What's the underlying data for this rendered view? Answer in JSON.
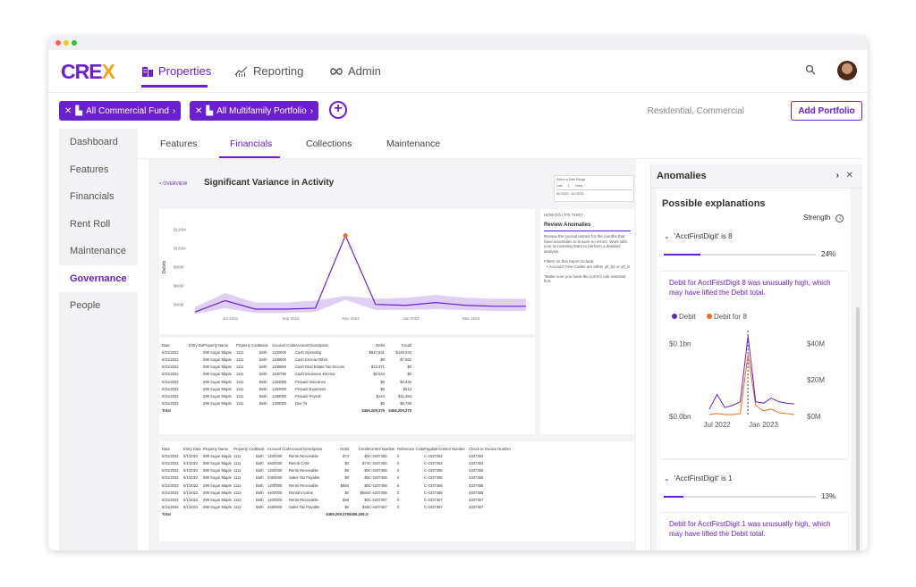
{
  "colors": {
    "accent": "#6a1fd0",
    "orange": "#f26c1b",
    "band": "#d9c7f2"
  },
  "app": {
    "logo_main": "CRE",
    "logo_x": "X"
  },
  "nav": {
    "properties": "Properties",
    "reporting": "Reporting",
    "admin": "Admin"
  },
  "filters": {
    "chip1": "All Commercial Fund",
    "chip2": "All Multifamily Portfolio",
    "right_label": "Residential, Commercial",
    "add_portfolio": "Add Portfolio"
  },
  "sidebar": {
    "items": [
      "Dashboard",
      "Features",
      "Financials",
      "Rent Roll",
      "Maintenance",
      "Governance",
      "People"
    ]
  },
  "tabs": [
    "Features",
    "Financials",
    "Collections",
    "Maintenance"
  ],
  "report": {
    "overview": "< OVERVIEW",
    "title": "Significant Variance in Activity",
    "date_range": {
      "label": "Select a Date Range",
      "last": "Last",
      "count": "1",
      "unit": "Years",
      "range": "6/1/2022 - 6/1/2023"
    }
  },
  "chart_data": {
    "type": "line",
    "ylabel": "Debits",
    "y_ticks": [
      "$120M",
      "$100M",
      "$80M",
      "$60M",
      "$40M"
    ],
    "x_ticks": [
      "Jul 2022",
      "Sep 2022",
      "Nov 2022",
      "Jan 2023",
      "Mar 2023"
    ],
    "ylim": [
      35,
      125
    ],
    "series": [
      {
        "values": [
          32,
          44,
          35,
          35,
          36,
          113,
          40,
          39,
          42,
          39,
          38,
          38
        ]
      }
    ],
    "band_low": [
      30,
      36,
      31,
      31,
      32,
      45,
      34,
      34,
      35,
      34,
      33,
      33
    ],
    "band_high": [
      37,
      52,
      42,
      42,
      44,
      49,
      46,
      47,
      50,
      47,
      46,
      46
    ],
    "highlight_index": 5
  },
  "help": {
    "how": "HOW DO I FIX THIS?",
    "title": "Review Anomalies",
    "p1": "Review the journal entries for the months that have anomalies to ensure no errors. Work with your accounting team to perform a detailed analysis.",
    "p2": "Filters on this report include:",
    "p3": "• Account Tree Codes are either ytl_bs or ytl_is",
    "p4": "*Make sure you have the correct role selected first."
  },
  "table1": {
    "headers": [
      "Date",
      "Entry Date",
      "Property Name",
      "Property Code",
      "Book",
      "Account Code",
      "Account Description",
      "Debit",
      "Credit"
    ],
    "rows": [
      [
        "5/31/2022",
        "",
        "299 Sugar Maple",
        "1111",
        "Both",
        "1100000",
        "Cash Operating",
        "$627,631",
        "$148,034"
      ],
      [
        "5/31/2022",
        "",
        "299 Sugar Maple",
        "1111",
        "Both",
        "1108500",
        "Cash Escrow Other",
        "$0",
        "$7,662"
      ],
      [
        "5/31/2022",
        "",
        "299 Sugar Maple",
        "1111",
        "Both",
        "1108650",
        "Cash Real Estate Tax Escrow",
        "$13,371",
        "$0"
      ],
      [
        "5/31/2022",
        "",
        "299 Sugar Maple",
        "1111",
        "Both",
        "1109750",
        "Cash Insurance Escrow",
        "$5,534",
        "$0"
      ],
      [
        "5/31/2022",
        "",
        "299 Sugar Maple",
        "1111",
        "Both",
        "1284000",
        "Prepaid Insurance",
        "$0",
        "$4,632"
      ],
      [
        "5/31/2022",
        "",
        "299 Sugar Maple",
        "1111",
        "Both",
        "1284500",
        "Prepaid Expenses",
        "$0",
        "$513"
      ],
      [
        "5/31/2022",
        "",
        "299 Sugar Maple",
        "1111",
        "Both",
        "1289000",
        "Prepaid Payroll",
        "$144",
        "$11,384"
      ],
      [
        "5/31/2022",
        "",
        "299 Sugar Maple",
        "1111",
        "Both",
        "1308000",
        "Due To",
        "$0",
        "$6,780"
      ]
    ],
    "total_label": "Total",
    "total_debit": "$455,209,375",
    "total_credit": "$455,209,375"
  },
  "table2": {
    "headers": [
      "Date",
      "Entry Date",
      "Property Name",
      "Property Code",
      "Book",
      "Account Code",
      "Account Description",
      "Debit",
      "Credit",
      "Control Number",
      "Reference Code",
      "Payable Control Number",
      "Check or Invoice Number"
    ],
    "rows": [
      [
        "5/31/2022",
        "5/1/2022",
        "299 Sugar Maple",
        "1111",
        "Both",
        "1200000",
        "Rents Receivable",
        "$74",
        "$0",
        "C-4337454",
        "0",
        "C-4337454",
        "4337454"
      ],
      [
        "5/31/2022",
        "5/1/2022",
        "299 Sugar Maple",
        "1111",
        "Both",
        "4500000",
        "Reimb CAM",
        "$0",
        "$74",
        "C-4337454",
        "0",
        "C-4337454",
        "4337454"
      ],
      [
        "5/31/2022",
        "5/1/2022",
        "299 Sugar Maple",
        "1111",
        "Both",
        "1200000",
        "Rents Receivable",
        "$5",
        "$0",
        "C-4337455",
        "0",
        "C-4337455",
        "4337455"
      ],
      [
        "5/31/2022",
        "5/1/2022",
        "299 Sugar Maple",
        "1111",
        "Both",
        "2450000",
        "Sales Tax Payable",
        "$0",
        "$5",
        "C-4337455",
        "0",
        "C-4337455",
        "4337455"
      ],
      [
        "5/31/2022",
        "5/1/2022",
        "299 Sugar Maple",
        "1111",
        "Both",
        "1200000",
        "Rents Receivable",
        "$684",
        "$0",
        "C-4337456",
        "0",
        "C-4337456",
        "4337456"
      ],
      [
        "5/31/2022",
        "5/1/2022",
        "299 Sugar Maple",
        "1111",
        "Both",
        "4400000",
        "Rental Income",
        "$0",
        "$684",
        "C-4337456",
        "0",
        "C-4337456",
        "4337456"
      ],
      [
        "5/31/2022",
        "5/1/2022",
        "299 Sugar Maple",
        "1111",
        "Both",
        "1200000",
        "Rents Receivable",
        "$48",
        "$0",
        "C-4337457",
        "0",
        "C-4337457",
        "4337457"
      ],
      [
        "5/31/2022",
        "5/1/2022",
        "299 Sugar Maple",
        "1111",
        "Both",
        "2450000",
        "Sales Tax Payable",
        "$0",
        "$48",
        "C-4337457",
        "0",
        "C-4337457",
        "4337457"
      ]
    ],
    "total_label": "Total",
    "total_debit": "$455,209,375",
    "total_credit": "$455,209,375"
  },
  "anomalies": {
    "title": "Anomalies",
    "possible": "Possible explanations",
    "strength": "Strength",
    "factor1": {
      "label": "'AcctFirstDigit' is 8",
      "pct": "24%",
      "fraction": 0.24,
      "text": "Debit for AcctFirstDigit 8 was unusually high, which may have lifted the Debit total."
    },
    "factor2": {
      "label": "'AcctFirstDigit' is 1",
      "pct": "13%",
      "fraction": 0.13,
      "text": "Debit for AcctFirstDigit 1 was unusually high, which may have lifted the Debit total."
    },
    "mini_chart": {
      "legend_debit": "Debit",
      "legend_debit8": "Debit for 8",
      "left_ticks": [
        "$0.1bn",
        "$0.0bn"
      ],
      "right_ticks": [
        "$40M",
        "$20M",
        "$0M"
      ],
      "x_ticks": [
        "Jul 2022",
        "Jan 2023"
      ],
      "debit": [
        0.01,
        0.03,
        0.012,
        0.015,
        0.02,
        0.11,
        0.02,
        0.018,
        0.025,
        0.02,
        0.018,
        0.017
      ],
      "debit8": [
        1,
        1.5,
        1,
        1,
        1.5,
        34,
        6,
        3,
        4,
        2,
        1.5,
        1
      ],
      "highlight_index": 5
    }
  }
}
